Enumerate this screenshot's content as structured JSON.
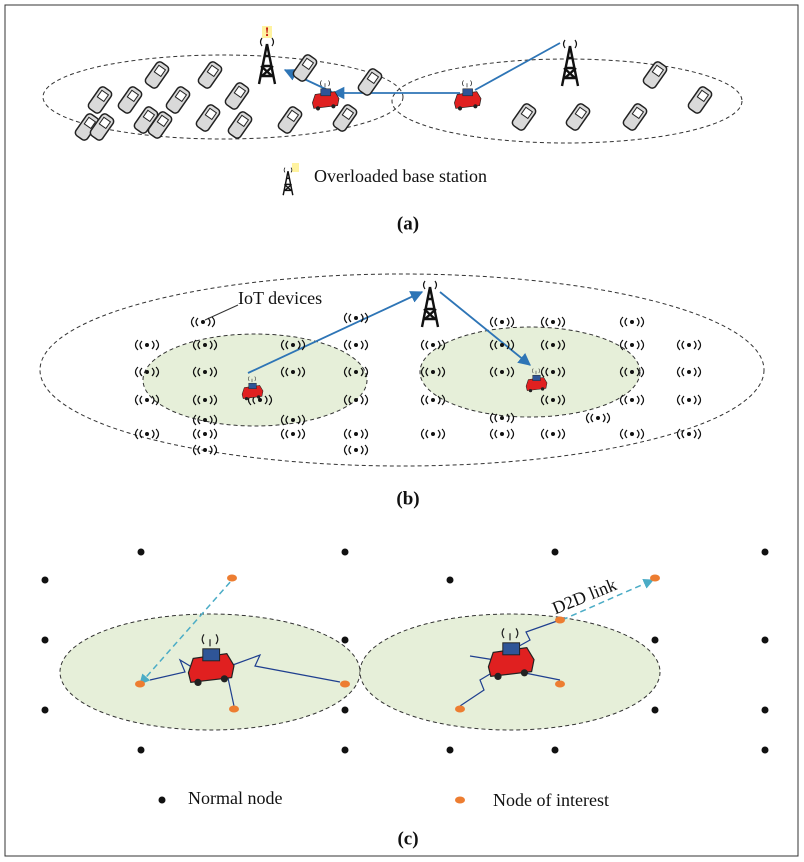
{
  "panel_a": {
    "legend": "Overloaded base station",
    "label": "(a)"
  },
  "panel_b": {
    "annotation": "IoT devices",
    "label": "(b)"
  },
  "panel_c": {
    "annotation": "D2D link",
    "legend_normal": "Normal node",
    "legend_interest": "Node of interest",
    "label": "(c)"
  }
}
